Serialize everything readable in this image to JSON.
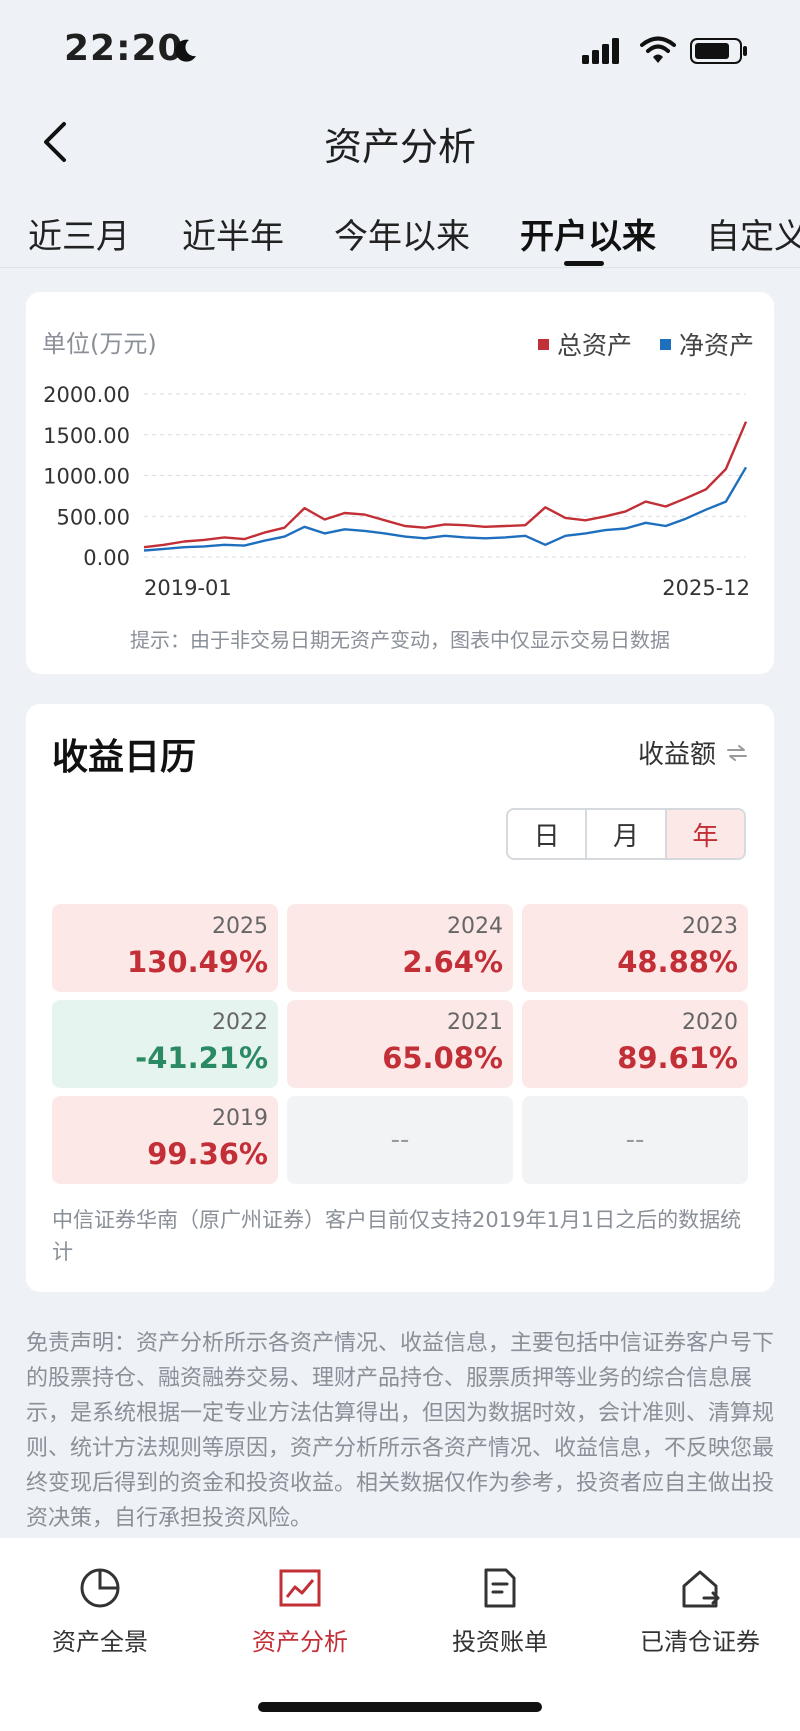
{
  "status_bar": {
    "time": "22:20"
  },
  "nav": {
    "title": "资产分析",
    "back_icon": "chevron-left-icon"
  },
  "range_tabs": [
    {
      "label": "近三月",
      "active": false
    },
    {
      "label": "近半年",
      "active": false
    },
    {
      "label": "今年以来",
      "active": false
    },
    {
      "label": "开户以来",
      "active": true
    },
    {
      "label": "自定义",
      "active": false
    }
  ],
  "asset_chart": {
    "unit_label": "单位(万元)",
    "note": "提示：由于非交易日期无资产变动，图表中仅显示交易日数据"
  },
  "chart_data": {
    "type": "line",
    "ylabel": "单位(万元)",
    "ylim": [
      0,
      2000
    ],
    "y_ticks": [
      "2000.00",
      "1500.00",
      "1000.00",
      "500.00",
      "0.00"
    ],
    "x_tick_labels": [
      "2019-01",
      "2025-12"
    ],
    "grid": true,
    "legend_position": "top-right",
    "x": [
      "2019-01",
      "2019-04",
      "2019-07",
      "2019-10",
      "2020-01",
      "2020-04",
      "2020-07",
      "2020-10",
      "2021-01",
      "2021-04",
      "2021-07",
      "2021-10",
      "2022-01",
      "2022-04",
      "2022-07",
      "2022-10",
      "2023-01",
      "2023-04",
      "2023-07",
      "2023-10",
      "2024-01",
      "2024-04",
      "2024-07",
      "2024-10",
      "2025-01",
      "2025-04",
      "2025-07",
      "2025-09",
      "2025-10",
      "2025-11",
      "2025-12"
    ],
    "series": [
      {
        "name": "总资产",
        "color": "#c22f36",
        "values": [
          120,
          150,
          190,
          210,
          240,
          220,
          300,
          360,
          600,
          460,
          540,
          520,
          450,
          380,
          360,
          400,
          390,
          370,
          380,
          390,
          610,
          480,
          450,
          500,
          560,
          680,
          620,
          720,
          830,
          1080,
          1660
        ]
      },
      {
        "name": "净资产",
        "color": "#1f6fbf",
        "values": [
          80,
          100,
          120,
          130,
          150,
          140,
          200,
          250,
          370,
          290,
          340,
          320,
          290,
          250,
          230,
          260,
          240,
          230,
          240,
          260,
          150,
          260,
          290,
          330,
          350,
          420,
          380,
          470,
          580,
          680,
          1100
        ]
      }
    ]
  },
  "calendar": {
    "title": "收益日历",
    "metric_label": "收益额",
    "periods": [
      {
        "label": "日",
        "active": false
      },
      {
        "label": "月",
        "active": false
      },
      {
        "label": "年",
        "active": true
      }
    ],
    "cells": [
      {
        "year": "2025",
        "value": "130.49%",
        "tone": "pos"
      },
      {
        "year": "2024",
        "value": "2.64%",
        "tone": "pos"
      },
      {
        "year": "2023",
        "value": "48.88%",
        "tone": "pos"
      },
      {
        "year": "2022",
        "value": "-41.21%",
        "tone": "neg"
      },
      {
        "year": "2021",
        "value": "65.08%",
        "tone": "pos"
      },
      {
        "year": "2020",
        "value": "89.61%",
        "tone": "pos"
      },
      {
        "year": "2019",
        "value": "99.36%",
        "tone": "pos"
      },
      {
        "year": "",
        "value": "--",
        "tone": "empty"
      },
      {
        "year": "",
        "value": "--",
        "tone": "empty"
      }
    ],
    "note": "中信证券华南（原广州证券）客户目前仅支持2019年1月1日之后的数据统计"
  },
  "disclaimer": "免责声明：资产分析所示各资产情况、收益信息，主要包括中信证券客户号下的股票持仓、融资融券交易、理财产品持仓、服票质押等业务的综合信息展示，是系统根据一定专业方法估算得出，但因为数据时效，会计准则、清算规则、统计方法规则等原因，资产分析所示各资产情况、收益信息，不反映您最终变现后得到的资金和投资收益。相关数据仅作为参考，投资者应自主做出投资决策，自行承担投资风险。",
  "tab_bar": [
    {
      "label": "资产全景",
      "icon": "pie-chart-icon",
      "active": false
    },
    {
      "label": "资产分析",
      "icon": "line-chart-icon",
      "active": true
    },
    {
      "label": "投资账单",
      "icon": "bill-icon",
      "active": false
    },
    {
      "label": "已清仓证券",
      "icon": "house-exit-icon",
      "active": false
    }
  ]
}
